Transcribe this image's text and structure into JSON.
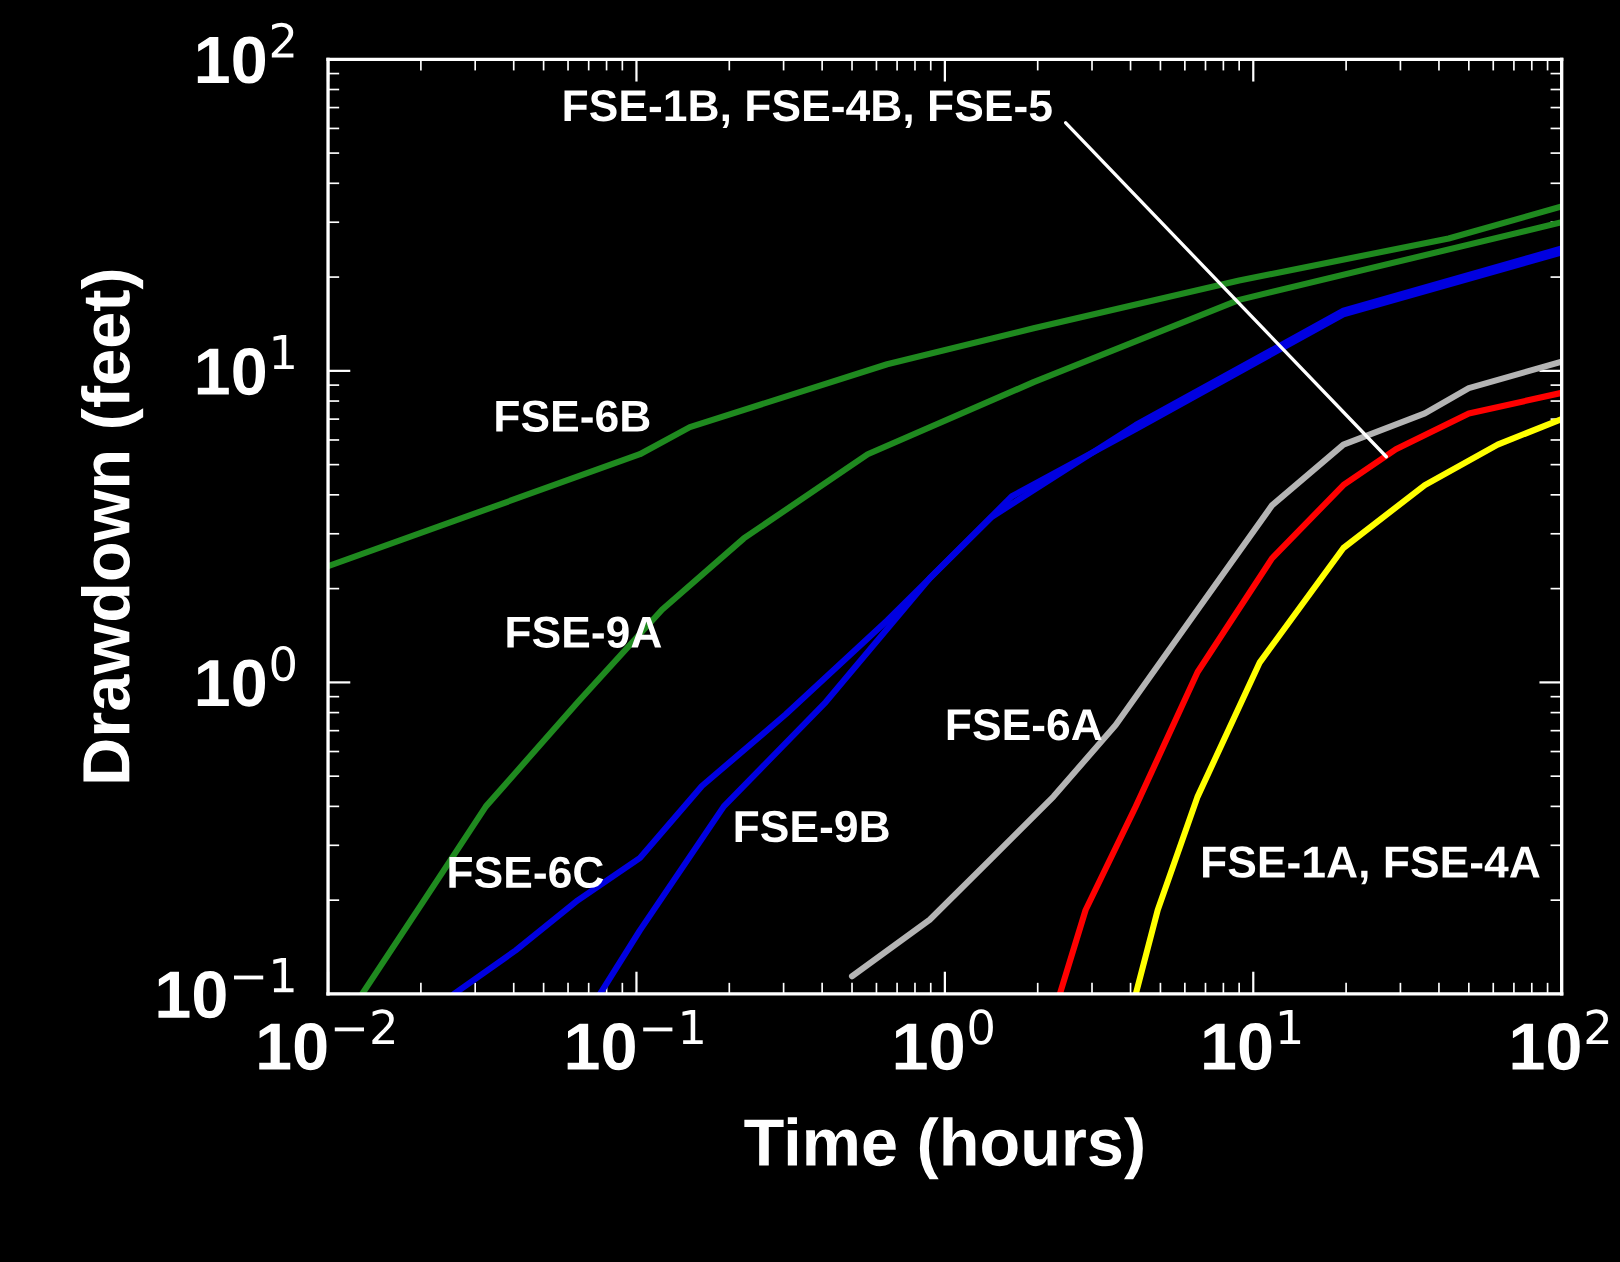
{
  "chart_data": {
    "type": "line",
    "xlabel": "Time (hours)",
    "ylabel": "Drawdown (feet)",
    "log": "xy",
    "xlim": [
      0.01,
      100
    ],
    "ylim": [
      0.1,
      100
    ],
    "xticks": [
      {
        "value": 0.01,
        "label": "10$^{−2}$"
      },
      {
        "value": 0.1,
        "label": "10$^{−1}$"
      },
      {
        "value": 1,
        "label": "10$^{0}$"
      },
      {
        "value": 10,
        "label": "10$^{1}$"
      },
      {
        "value": 100,
        "label": "10$^{2}$"
      }
    ],
    "yticks": [
      {
        "value": 0.1,
        "label": "10$^{−1}$"
      },
      {
        "value": 1,
        "label": "10$^{0}$"
      },
      {
        "value": 10,
        "label": "10$^{1}$"
      },
      {
        "value": 100,
        "label": "10$^{2}$"
      }
    ],
    "grid": false,
    "legend": false,
    "marker": "none",
    "line_style": "solid",
    "series": [
      {
        "color": "#1f8a1f",
        "x": [
          0.01,
          0.1026,
          0.149,
          0.65,
          1.94,
          9.0,
          43,
          100
        ],
        "values": [
          2.36,
          5.4,
          6.6,
          10.5,
          13.7,
          19.5,
          26.6,
          33.7
        ]
      },
      {
        "color": "#1f8a1f",
        "x": [
          0.0129,
          0.0205,
          0.0325,
          0.0646,
          0.121,
          0.223,
          0.562,
          1.94,
          9.0,
          100
        ],
        "values": [
          0.1,
          0.2,
          0.4,
          0.865,
          1.71,
          2.9,
          5.4,
          9.2,
          16.9,
          30
        ]
      },
      {
        "color": "#0000e0",
        "x": [
          0.0256,
          0.0406,
          0.0646,
          0.1026,
          0.163,
          0.305,
          0.65,
          1.42,
          4.16,
          19.6,
          100
        ],
        "values": [
          0.1,
          0.138,
          0.2,
          0.273,
          0.465,
          0.79,
          1.58,
          3.4,
          6.7,
          15.6,
          24.7
        ]
      },
      {
        "color": "#0000e0",
        "x": [
          0.0762,
          0.1026,
          0.192,
          0.411,
          0.893,
          1.65,
          4.16,
          19.6,
          100
        ],
        "values": [
          0.1,
          0.16,
          0.4,
          0.865,
          2.16,
          3.96,
          6.5,
          15.2,
          24
        ]
      },
      {
        "color": "#b4b4b4",
        "x": [
          0.5,
          0.893,
          1.42,
          2.25,
          3.58,
          6.6,
          11.5,
          19.6,
          36,
          50,
          100
        ],
        "values": [
          0.114,
          0.173,
          0.273,
          0.43,
          0.73,
          1.71,
          3.7,
          5.8,
          7.3,
          8.8,
          10.7
        ]
      },
      {
        "color": "#ff0000",
        "x": [
          2.36,
          2.86,
          4.16,
          6.6,
          11.5,
          19.6,
          29,
          50,
          100
        ],
        "values": [
          0.1,
          0.186,
          0.4,
          1.08,
          2.5,
          4.3,
          5.6,
          7.3,
          8.5
        ]
      },
      {
        "color": "#ffff00",
        "x": [
          4.16,
          4.9,
          6.6,
          10.5,
          19.6,
          36,
          62,
          100
        ],
        "values": [
          0.1,
          0.186,
          0.43,
          1.16,
          2.7,
          4.3,
          5.8,
          7.0
        ]
      }
    ],
    "annotations": [
      {
        "text": "FSE-1B, FSE-4B, FSE-5",
        "x": 27,
        "y": 5.3
      },
      "FSE-6B",
      "FSE-9A",
      "FSE-6C",
      "FSE-9B",
      "FSE-6A",
      "FSE-1A, FSE-4A"
    ]
  }
}
